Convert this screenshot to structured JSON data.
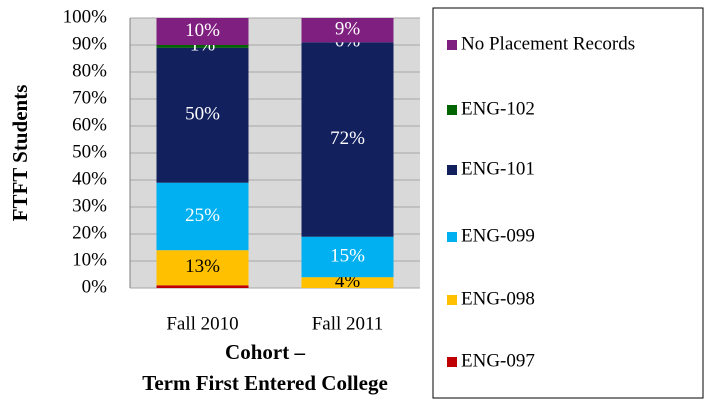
{
  "chart_data": {
    "type": "stacked_bar",
    "y_label": "FTFT Students",
    "x_label": [
      "Cohort –",
      "Term First Entered College"
    ],
    "categories": [
      "Fall 2010",
      "Fall 2011"
    ],
    "series": [
      {
        "name": "ENG-097",
        "color": "#c00000",
        "values": [
          1,
          0
        ],
        "value_labels": [
          null,
          null
        ]
      },
      {
        "name": "ENG-098",
        "color": "#ffc000",
        "values": [
          13,
          4
        ],
        "value_labels": [
          "13%",
          "4%"
        ]
      },
      {
        "name": "ENG-099",
        "color": "#00b0f0",
        "values": [
          25,
          15
        ],
        "value_labels": [
          "25%",
          "15%"
        ]
      },
      {
        "name": "ENG-101",
        "color": "#12205e",
        "values": [
          50,
          72
        ],
        "value_labels": [
          "50%",
          "72%"
        ]
      },
      {
        "name": "ENG-102",
        "color": "#006400",
        "values": [
          1,
          0
        ],
        "value_labels": [
          "1%",
          "0%"
        ]
      },
      {
        "name": "No Placement Records",
        "color": "#7f1f7f",
        "values": [
          10,
          9
        ],
        "value_labels": [
          "10%",
          "9%"
        ]
      }
    ],
    "ylim": [
      0,
      100
    ],
    "yticks": [
      {
        "value": 0,
        "label": "0%"
      },
      {
        "value": 10,
        "label": "10%"
      },
      {
        "value": 20,
        "label": "20%"
      },
      {
        "value": 30,
        "label": "30%"
      },
      {
        "value": 40,
        "label": "40%"
      },
      {
        "value": 50,
        "label": "50%"
      },
      {
        "value": 60,
        "label": "60%"
      },
      {
        "value": 70,
        "label": "70%"
      },
      {
        "value": 80,
        "label": "80%"
      },
      {
        "value": 90,
        "label": "90%"
      },
      {
        "value": 100,
        "label": "100%"
      }
    ],
    "grid": true,
    "legend": "right"
  }
}
